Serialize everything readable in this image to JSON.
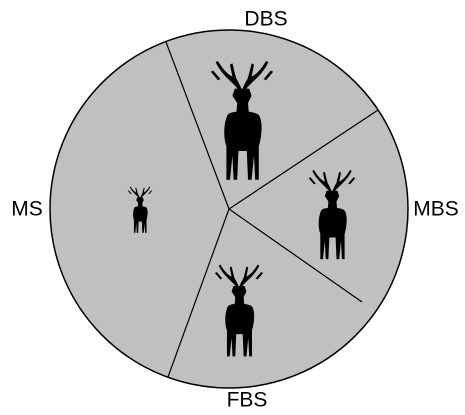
{
  "nodes": [
    {
      "label": "DBS"
    },
    {
      "label": "MBS"
    },
    {
      "label": "FBS"
    },
    {
      "label": "MS"
    }
  ]
}
